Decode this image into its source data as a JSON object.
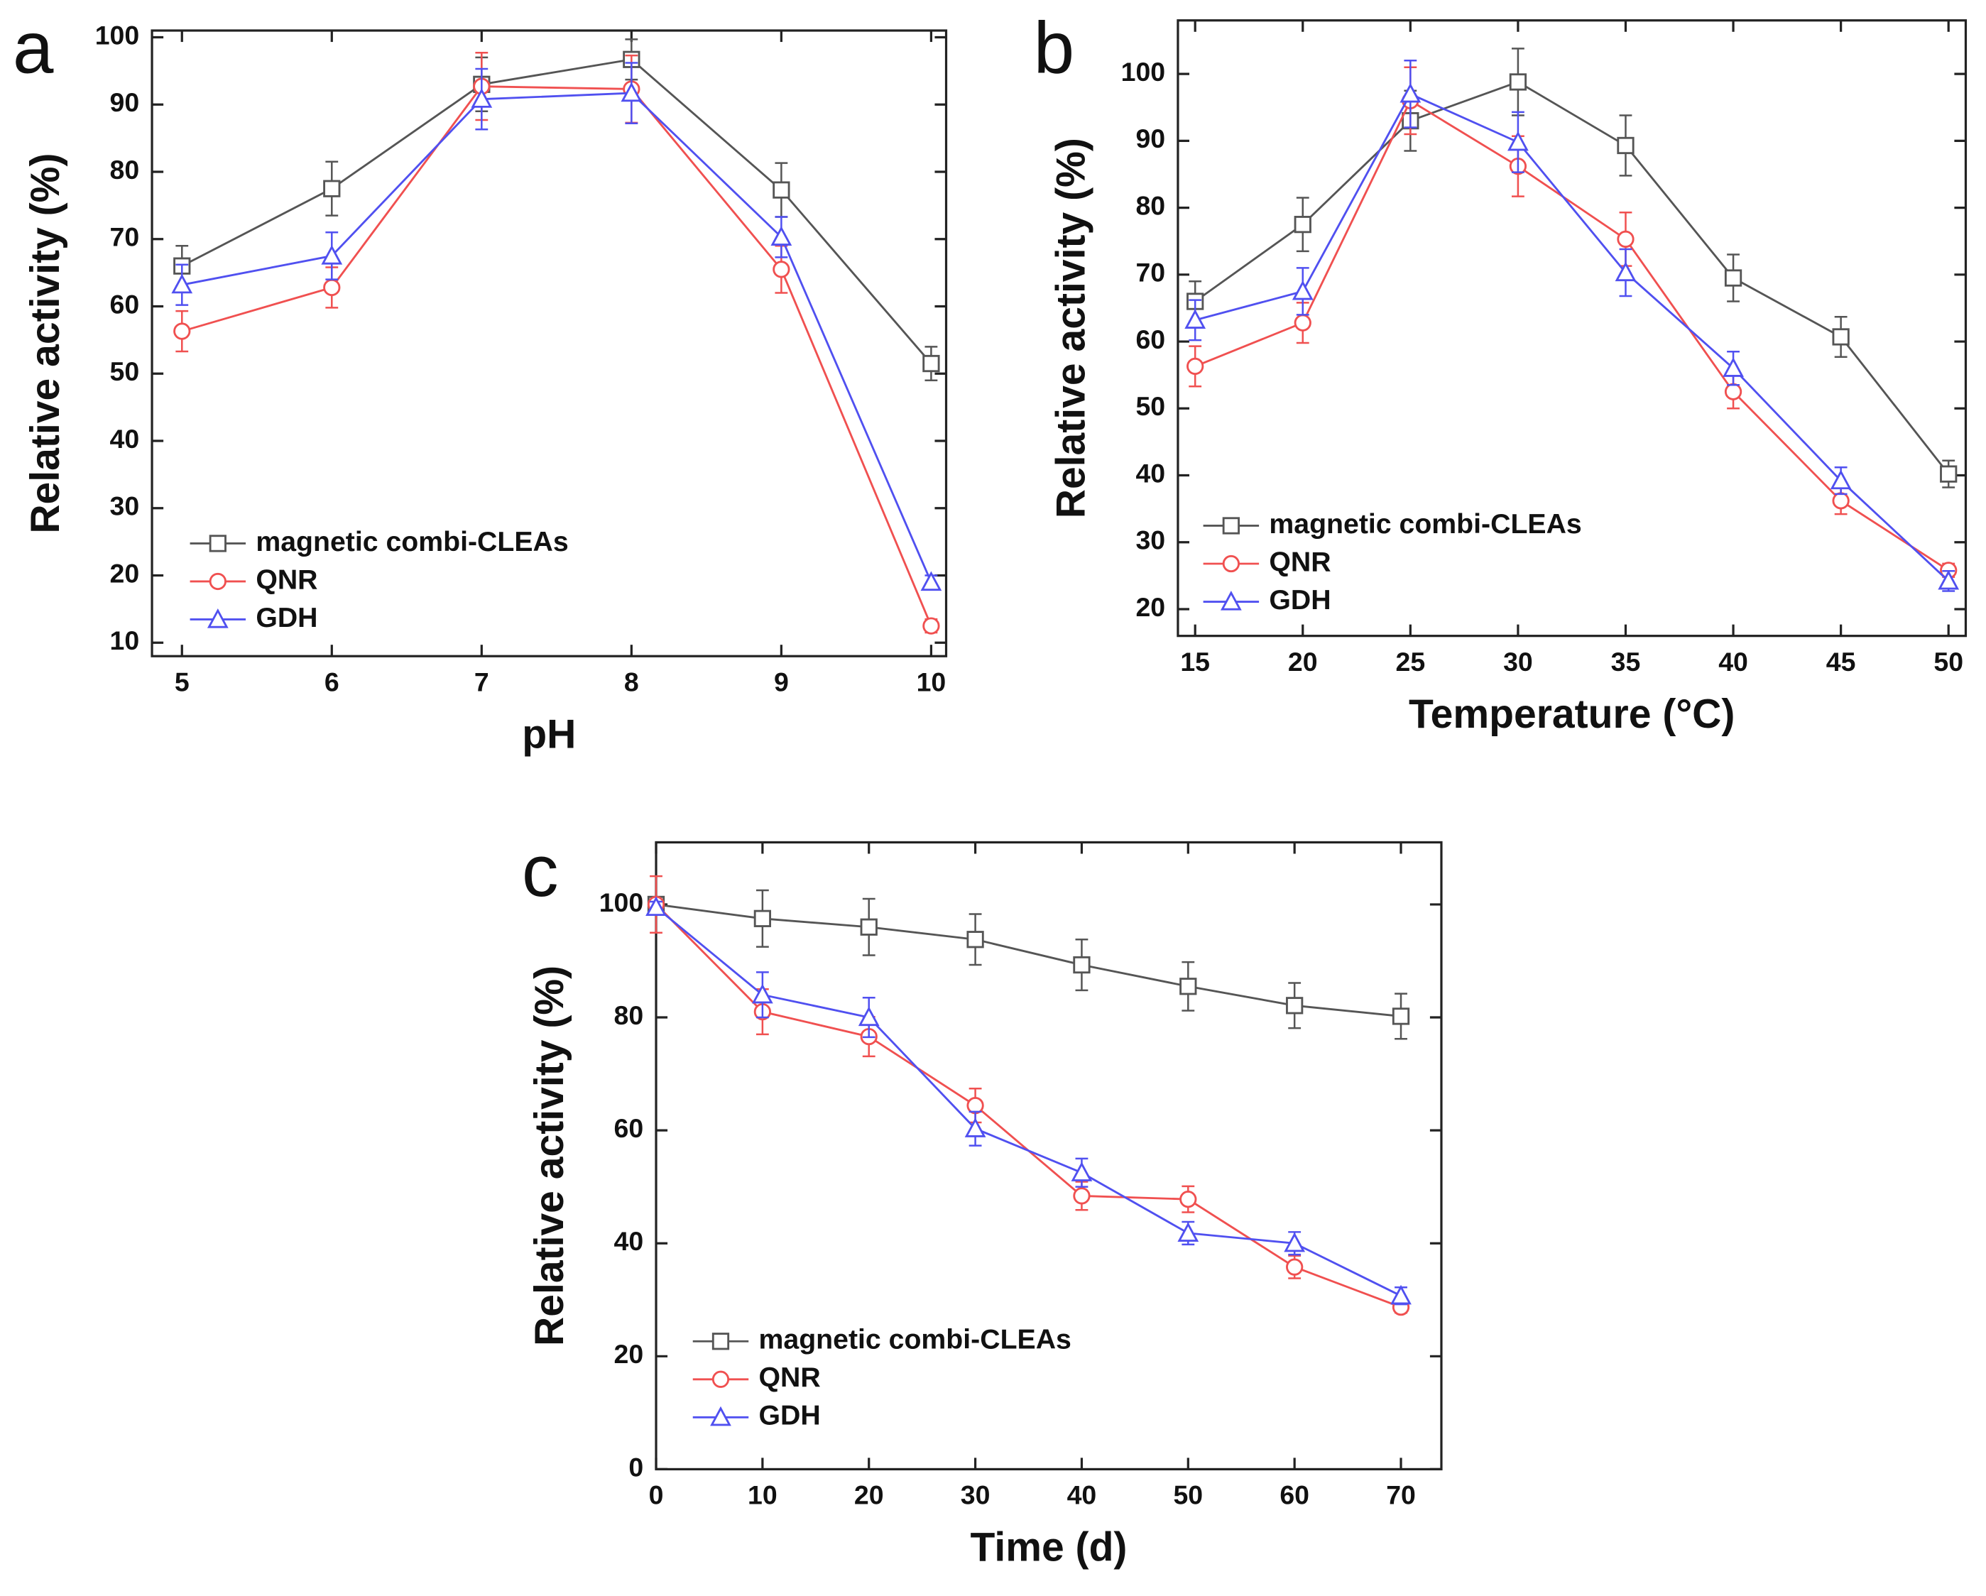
{
  "chart_data": [
    {
      "type": "line",
      "panel": "a",
      "xlabel": "pH",
      "ylabel": "Relative activity (%)",
      "x": [
        5,
        6,
        7,
        8,
        9,
        10
      ],
      "xlim": [
        4.8,
        10.1
      ],
      "xticks": [
        5,
        6,
        7,
        8,
        9,
        10
      ],
      "ylim": [
        8,
        101
      ],
      "yticks": [
        10,
        20,
        30,
        40,
        50,
        60,
        70,
        80,
        90,
        100
      ],
      "series": [
        {
          "name": "magnetic combi-CLEAs",
          "color": "#555555",
          "marker": "square",
          "values": [
            66,
            77.5,
            93,
            96.7,
            77.3,
            51.5
          ],
          "errors": [
            3,
            4,
            4,
            3,
            4,
            2.5
          ]
        },
        {
          "name": "QNR",
          "color": "#f05050",
          "marker": "circle",
          "values": [
            56.3,
            62.8,
            92.7,
            92.3,
            65.5,
            12.5
          ],
          "errors": [
            3,
            3,
            5,
            5,
            3.5,
            1
          ]
        },
        {
          "name": "GDH",
          "color": "#5050f0",
          "marker": "triangle",
          "values": [
            63.2,
            67.5,
            90.8,
            91.7,
            70.3,
            19
          ],
          "errors": [
            3,
            3.5,
            4.5,
            4.5,
            3,
            1
          ]
        }
      ]
    },
    {
      "type": "line",
      "panel": "b",
      "xlabel": "Temperature (°C)",
      "ylabel": "Relative activity (%)",
      "x": [
        15,
        20,
        25,
        30,
        35,
        40,
        45,
        50
      ],
      "xlim": [
        14.2,
        50.8
      ],
      "xticks": [
        15,
        20,
        25,
        30,
        35,
        40,
        45,
        50
      ],
      "ylim": [
        16,
        108
      ],
      "yticks": [
        20,
        30,
        40,
        50,
        60,
        70,
        80,
        90,
        100
      ],
      "series": [
        {
          "name": "magnetic combi-CLEAs",
          "color": "#555555",
          "marker": "square",
          "values": [
            66,
            77.5,
            93,
            98.8,
            89.3,
            69.5,
            60.7,
            40.2
          ],
          "errors": [
            3,
            4,
            4.5,
            5,
            4.5,
            3.5,
            3,
            2
          ]
        },
        {
          "name": "QNR",
          "color": "#f05050",
          "marker": "circle",
          "values": [
            56.3,
            62.8,
            96,
            86.2,
            75.3,
            52.5,
            36.2,
            25.8
          ],
          "errors": [
            3,
            3,
            5,
            4.5,
            4,
            2.5,
            2,
            1
          ]
        },
        {
          "name": "GDH",
          "color": "#5050f0",
          "marker": "triangle",
          "values": [
            63.2,
            67.5,
            97,
            89.8,
            70.3,
            56,
            39.2,
            24.2
          ],
          "errors": [
            3,
            3.5,
            5,
            4.5,
            3.5,
            2.5,
            2,
            1.5
          ]
        }
      ]
    },
    {
      "type": "line",
      "panel": "c",
      "xlabel": "Time (d)",
      "ylabel": "Relative activity (%)",
      "x": [
        0,
        10,
        20,
        30,
        40,
        50,
        60,
        70
      ],
      "xlim": [
        0,
        73.8
      ],
      "xticks": [
        0,
        10,
        20,
        30,
        40,
        50,
        60,
        70
      ],
      "ylim": [
        0,
        111
      ],
      "yticks": [
        0,
        20,
        40,
        60,
        80,
        100
      ],
      "series": [
        {
          "name": "magnetic combi-CLEAs",
          "color": "#555555",
          "marker": "square",
          "values": [
            100,
            97.5,
            96,
            93.8,
            89.3,
            85.5,
            82.1,
            80.2
          ],
          "errors": [
            1,
            5,
            5,
            4.5,
            4.5,
            4.3,
            4,
            4
          ]
        },
        {
          "name": "QNR",
          "color": "#f05050",
          "marker": "circle",
          "values": [
            100,
            81,
            76.6,
            64.4,
            48.4,
            47.8,
            35.8,
            28.7
          ],
          "errors": [
            5,
            4,
            3.5,
            3,
            2.5,
            2.3,
            2,
            1
          ]
        },
        {
          "name": "GDH",
          "color": "#5050f0",
          "marker": "triangle",
          "values": [
            99.5,
            84,
            80,
            60.3,
            52.5,
            41.8,
            40,
            30.7
          ],
          "errors": [
            1,
            4,
            3.5,
            3,
            2.5,
            2,
            2,
            1.5
          ]
        }
      ]
    }
  ]
}
